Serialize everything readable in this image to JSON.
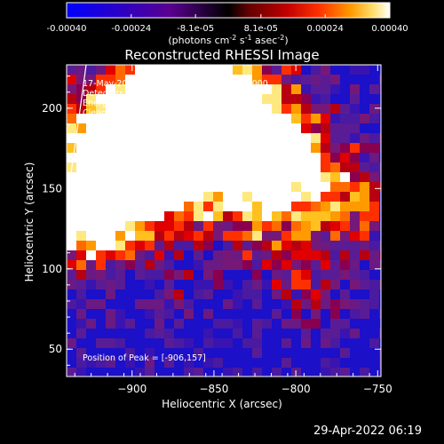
{
  "footer": {
    "timestamp": "29-Apr-2022 06:19"
  },
  "colorbar": {
    "tick_labels": [
      "-0.00040",
      "-0.00024",
      "-8.1e-05",
      "8.1e-05",
      "0.00024",
      "0.00040"
    ],
    "tick_values": [
      -0.0004,
      -0.00024,
      -8.1e-05,
      8.1e-05,
      0.00024,
      0.0004
    ],
    "range": [
      -0.0004,
      0.0004
    ],
    "unit_text": "(photons cm",
    "unit_exp1": "-2",
    "unit_mid": " s",
    "unit_exp2": "-1",
    "unit_mid2": " asec",
    "unit_exp3": "-2",
    "unit_close": ")",
    "colors": [
      "#0000ff",
      "#3a00aa",
      "#6a0080",
      "#000000",
      "#7a0000",
      "#d00000",
      "#ff4000",
      "#ff9a00",
      "#ffe080",
      "#ffffff"
    ]
  },
  "chart_data": {
    "type": "heatmap",
    "title": "Reconstructed RHESSI Image",
    "xlabel": "Heliocentric X (arcsec)",
    "ylabel": "Heliocentric Y (arcsec)",
    "xlim": [
      -940,
      -748
    ],
    "ylim": [
      33,
      227
    ],
    "xticks": [
      -900,
      -850,
      -800,
      -750
    ],
    "yticks": [
      50,
      100,
      150,
      200
    ],
    "xtick_labels": [
      "−900",
      "−850",
      "−800",
      "−750"
    ],
    "ytick_labels": [
      "50",
      "100",
      "150",
      "200"
    ],
    "annotations": [
      "17-May-2002 23:40:12.000 to 23:42:56.000",
      "Detectors: 3F 4F 5F 6F 7F 8F, Att 0",
      "Energy Range: 25.0 - 50.0 keV",
      "Clean     Total counts: 2.61E+03"
    ],
    "peak_label": "Position of Peak = [-906,157]",
    "peak_position": [
      -906,
      157
    ],
    "limb_visible": true
  }
}
